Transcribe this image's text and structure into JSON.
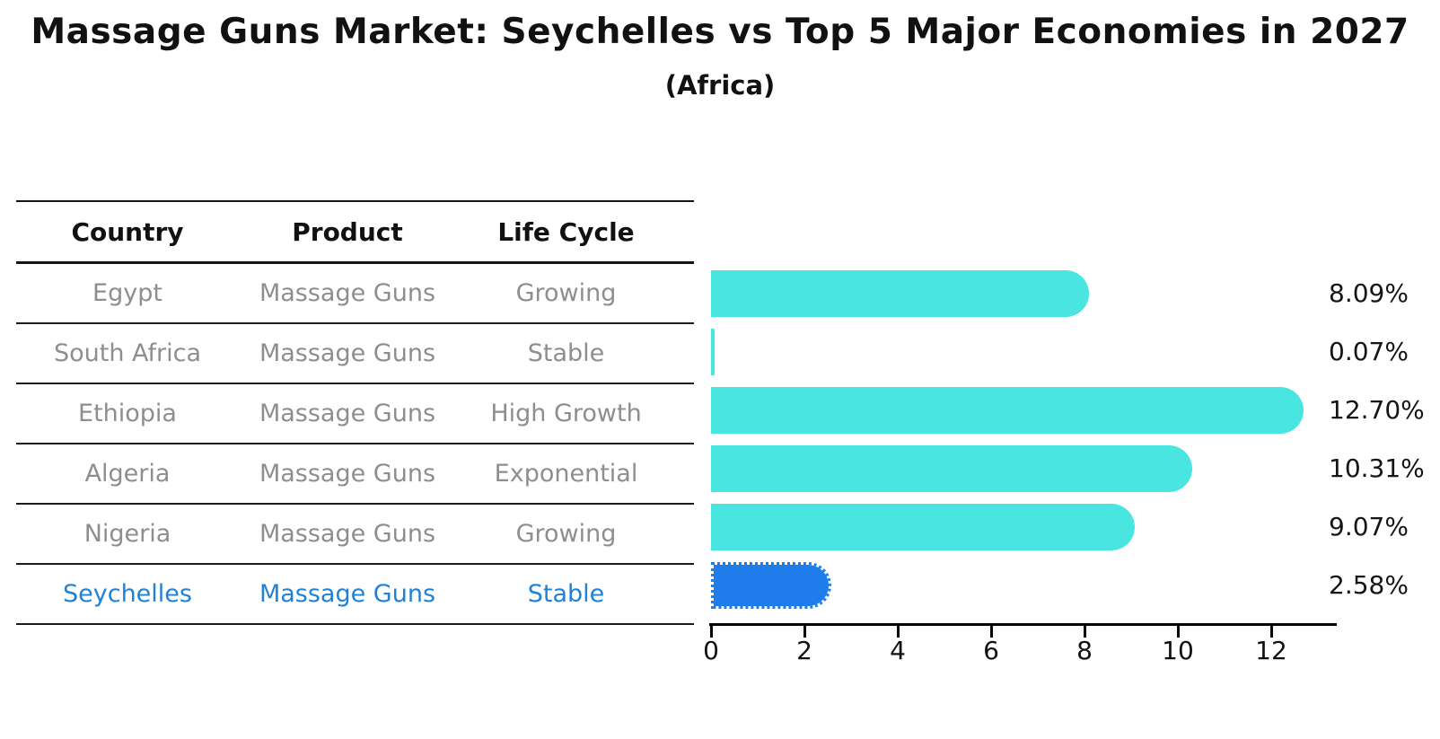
{
  "title": "Massage Guns Market: Seychelles vs Top 5 Major Economies in 2027",
  "subtitle": "(Africa)",
  "table": {
    "headers": [
      "Country",
      "Product",
      "Life Cycle"
    ],
    "rows": [
      {
        "country": "Egypt",
        "product": "Massage Guns",
        "life_cycle": "Growing",
        "highlighted": false
      },
      {
        "country": "South Africa",
        "product": "Massage Guns",
        "life_cycle": "Stable",
        "highlighted": false
      },
      {
        "country": "Ethiopia",
        "product": "Massage Guns",
        "life_cycle": "High Growth",
        "highlighted": false
      },
      {
        "country": "Algeria",
        "product": "Massage Guns",
        "life_cycle": "Exponential",
        "highlighted": false
      },
      {
        "country": "Nigeria",
        "product": "Massage Guns",
        "life_cycle": "Growing",
        "highlighted": false
      },
      {
        "country": "Seychelles",
        "product": "Massage Guns",
        "life_cycle": "Stable",
        "highlighted": true
      }
    ]
  },
  "chart_data": {
    "type": "bar",
    "orientation": "horizontal",
    "title": "Massage Guns Market: Seychelles vs Top 5 Major Economies in 2027 (Africa)",
    "categories": [
      "Egypt",
      "South Africa",
      "Ethiopia",
      "Algeria",
      "Nigeria",
      "Seychelles"
    ],
    "values": [
      8.09,
      0.07,
      12.7,
      10.31,
      9.07,
      2.58
    ],
    "value_labels": [
      "8.09%",
      "0.07%",
      "12.70%",
      "10.31%",
      "9.07%",
      "2.58%"
    ],
    "unit": "%",
    "x_ticks": [
      0,
      2,
      4,
      6,
      8,
      10,
      12
    ],
    "xlim": [
      0,
      13.4
    ],
    "grid": false,
    "legend": false,
    "highlight_index": 5,
    "highlight_style": "dotted-edge"
  },
  "colors": {
    "bar": "#48E5E1",
    "highlight_bar": "#1E7DEB",
    "highlight_text": "#1E82D8",
    "row_text": "#8E8E8E",
    "heading_text": "#111111",
    "axis": "#000000"
  }
}
